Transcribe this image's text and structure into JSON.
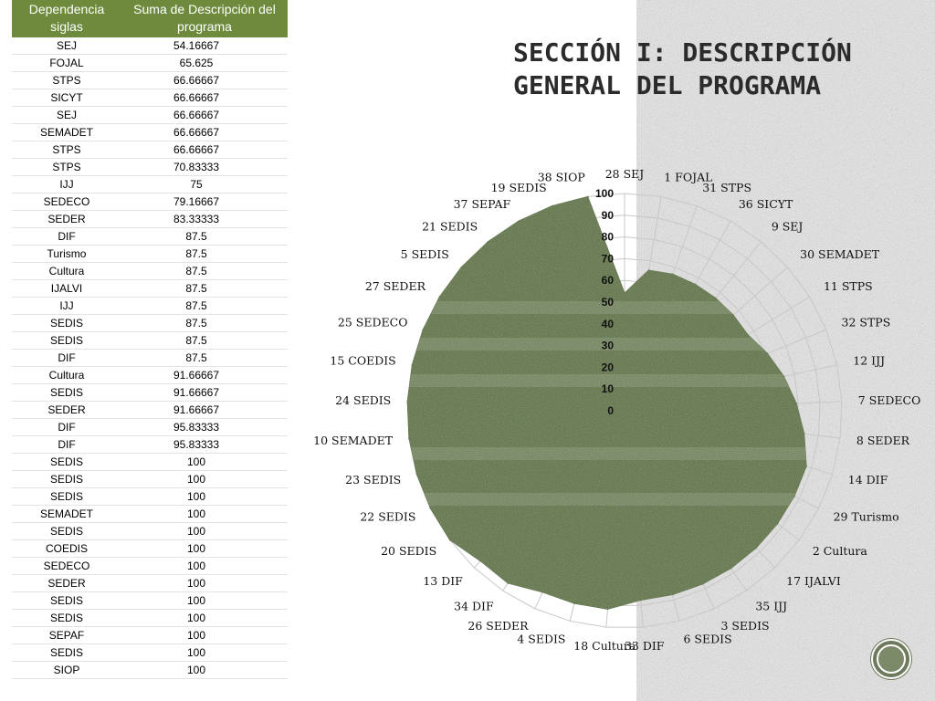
{
  "slide": {
    "title_line1": "SECCIÓN I: DESCRIPCIÓN",
    "title_line2": "GENERAL DEL PROGRAMA"
  },
  "table": {
    "header": [
      "Dependencia siglas",
      "Suma de Descripción del programa"
    ],
    "rows": [
      [
        "SEJ",
        "54.16667"
      ],
      [
        "FOJAL",
        "65.625"
      ],
      [
        "STPS",
        "66.66667"
      ],
      [
        "SICYT",
        "66.66667"
      ],
      [
        "SEJ",
        "66.66667"
      ],
      [
        "SEMADET",
        "66.66667"
      ],
      [
        "STPS",
        "66.66667"
      ],
      [
        "STPS",
        "70.83333"
      ],
      [
        "IJJ",
        "75"
      ],
      [
        "SEDECO",
        "79.16667"
      ],
      [
        "SEDER",
        "83.33333"
      ],
      [
        "DIF",
        "87.5"
      ],
      [
        "Turismo",
        "87.5"
      ],
      [
        "Cultura",
        "87.5"
      ],
      [
        "IJALVI",
        "87.5"
      ],
      [
        "IJJ",
        "87.5"
      ],
      [
        "SEDIS",
        "87.5"
      ],
      [
        "SEDIS",
        "87.5"
      ],
      [
        "DIF",
        "87.5"
      ],
      [
        "Cultura",
        "91.66667"
      ],
      [
        "SEDIS",
        "91.66667"
      ],
      [
        "SEDER",
        "91.66667"
      ],
      [
        "DIF",
        "95.83333"
      ],
      [
        "DIF",
        "95.83333"
      ],
      [
        "SEDIS",
        "100"
      ],
      [
        "SEDIS",
        "100"
      ],
      [
        "SEDIS",
        "100"
      ],
      [
        "SEMADET",
        "100"
      ],
      [
        "SEDIS",
        "100"
      ],
      [
        "COEDIS",
        "100"
      ],
      [
        "SEDECO",
        "100"
      ],
      [
        "SEDER",
        "100"
      ],
      [
        "SEDIS",
        "100"
      ],
      [
        "SEDIS",
        "100"
      ],
      [
        "SEPAF",
        "100"
      ],
      [
        "SEDIS",
        "100"
      ],
      [
        "SIOP",
        "100"
      ]
    ]
  },
  "chart_data": {
    "type": "radar",
    "title": "",
    "categories": [
      "28 SEJ",
      "1 FOJAL",
      "31 STPS",
      "36 SICYT",
      "9 SEJ",
      "30 SEMADET",
      "11 STPS",
      "32 STPS",
      "12 IJJ",
      "7 SEDECO",
      "8 SEDER",
      "14 DIF",
      "29 Turismo",
      "2 Cultura",
      "17 IJALVI",
      "35 IJJ",
      "3 SEDIS",
      "6 SEDIS",
      "33 DIF",
      "18 Cultura",
      "4 SEDIS",
      "26 SEDER",
      "34 DIF",
      "13 DIF",
      "20 SEDIS",
      "22 SEDIS",
      "23 SEDIS",
      "10 SEMADET",
      "24 SEDIS",
      "15 COEDIS",
      "25 SEDECO",
      "27 SEDER",
      "5 SEDIS",
      "21 SEDIS",
      "37 SEPAF",
      "19 SEDIS",
      "38 SIOP"
    ],
    "values": [
      54.16667,
      65.625,
      66.66667,
      66.66667,
      66.66667,
      66.66667,
      66.66667,
      70.83333,
      75,
      79.16667,
      83.33333,
      87.5,
      87.5,
      87.5,
      87.5,
      87.5,
      87.5,
      87.5,
      87.5,
      91.66667,
      91.66667,
      91.66667,
      95.83333,
      95.83333,
      100,
      100,
      100,
      100,
      100,
      100,
      100,
      100,
      100,
      100,
      100,
      100,
      100
    ],
    "rlim": [
      0,
      100
    ],
    "ticks": [
      "0",
      "10",
      "20",
      "30",
      "40",
      "50",
      "60",
      "70",
      "80",
      "90",
      "100"
    ],
    "grid": true,
    "fill_color": "#66794f",
    "grid_color": "#c8c8c8"
  }
}
